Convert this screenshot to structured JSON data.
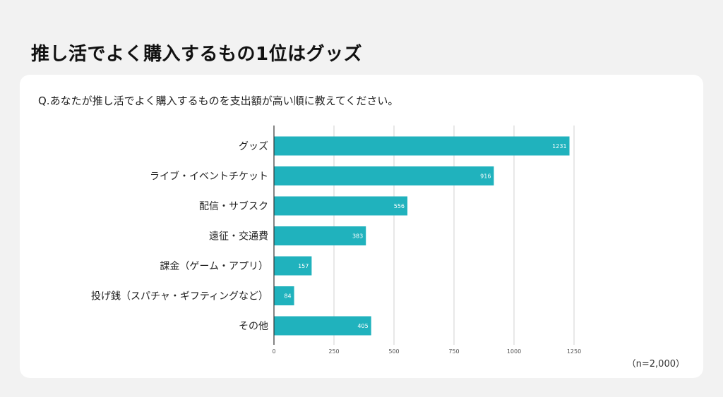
{
  "page": {
    "title": "推し活でよく購入するもの1位はグッズ",
    "question": "Q.あなたが推し活でよく購入するものを支出額が高い順に教えてください。",
    "note": "（n=2,000）"
  },
  "chart_data": {
    "type": "bar",
    "orientation": "horizontal",
    "categories": [
      "グッズ",
      "ライブ・イベントチケット",
      "配信・サブスク",
      "遠征・交通費",
      "課金（ゲーム・アプリ）",
      "投げ銭（スパチャ・ギフティングなど）",
      "その他"
    ],
    "values": [
      1231,
      916,
      556,
      383,
      157,
      84,
      405
    ],
    "xlim": [
      0,
      1250
    ],
    "xticks": [
      0,
      250,
      500,
      750,
      1000,
      1250
    ],
    "grid": true,
    "bar_color": "#20b2bd",
    "data_labels": true
  }
}
